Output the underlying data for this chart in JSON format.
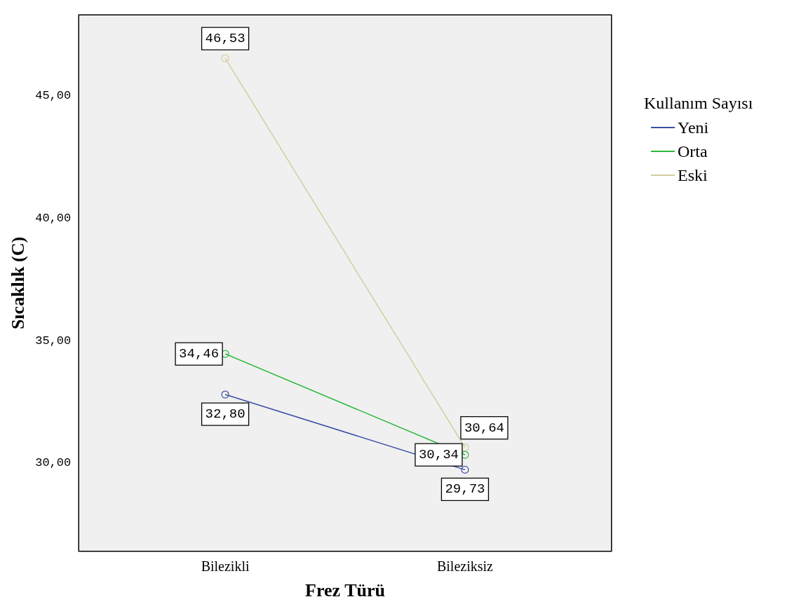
{
  "chart_data": {
    "type": "line",
    "xlabel": "Frez Türü",
    "ylabel": "Sıcaklık (C)",
    "legend_title": "Kullanım Sayısı",
    "categories": [
      "Bilezikli",
      "Bileziksiz"
    ],
    "series": [
      {
        "name": "Yeni",
        "color": "#3a4fa5",
        "values": [
          32.8,
          29.73
        ],
        "value_labels": [
          "32,80",
          "29,73"
        ]
      },
      {
        "name": "Orta",
        "color": "#2db83d",
        "values": [
          34.46,
          30.34
        ],
        "value_labels": [
          "34,46",
          "30,34"
        ]
      },
      {
        "name": "Eski",
        "color": "#d4cd9c",
        "values": [
          46.53,
          30.64
        ],
        "value_labels": [
          "46,53",
          "30,64"
        ]
      }
    ],
    "ylim": [
      26.4,
      48.3
    ],
    "yticks": [
      {
        "value": 30,
        "label": "30,00"
      },
      {
        "value": 35,
        "label": "35,00"
      },
      {
        "value": 40,
        "label": "40,00"
      },
      {
        "value": 45,
        "label": "45,00"
      }
    ],
    "grid": false,
    "legend": "top right",
    "marker": "circle",
    "line_style": "solid"
  }
}
